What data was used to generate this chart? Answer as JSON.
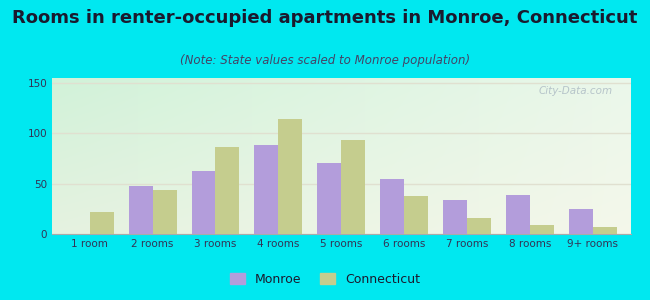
{
  "title": "Rooms in renter-occupied apartments in Monroe, Connecticut",
  "subtitle": "(Note: State values scaled to Monroe population)",
  "categories": [
    "1 room",
    "2 rooms",
    "3 rooms",
    "4 rooms",
    "5 rooms",
    "6 rooms",
    "7 rooms",
    "8 rooms",
    "9+ rooms"
  ],
  "monroe_values": [
    0,
    48,
    63,
    88,
    71,
    55,
    34,
    39,
    25
  ],
  "connecticut_values": [
    22,
    44,
    86,
    114,
    93,
    38,
    16,
    9,
    7
  ],
  "monroe_color": "#b39ddb",
  "connecticut_color": "#c5cd8e",
  "bar_width": 0.38,
  "ylim": [
    0,
    155
  ],
  "yticks": [
    0,
    50,
    100,
    150
  ],
  "background_outer": "#00e8f0",
  "title_fontsize": 13,
  "subtitle_fontsize": 8.5,
  "tick_fontsize": 7.5,
  "legend_fontsize": 9,
  "watermark_text": "City-Data.com",
  "watermark_color": "#aab8c2",
  "grid_color": "#e0e0d0",
  "title_color": "#1a1a2e",
  "subtitle_color": "#444466",
  "tick_color": "#333355"
}
